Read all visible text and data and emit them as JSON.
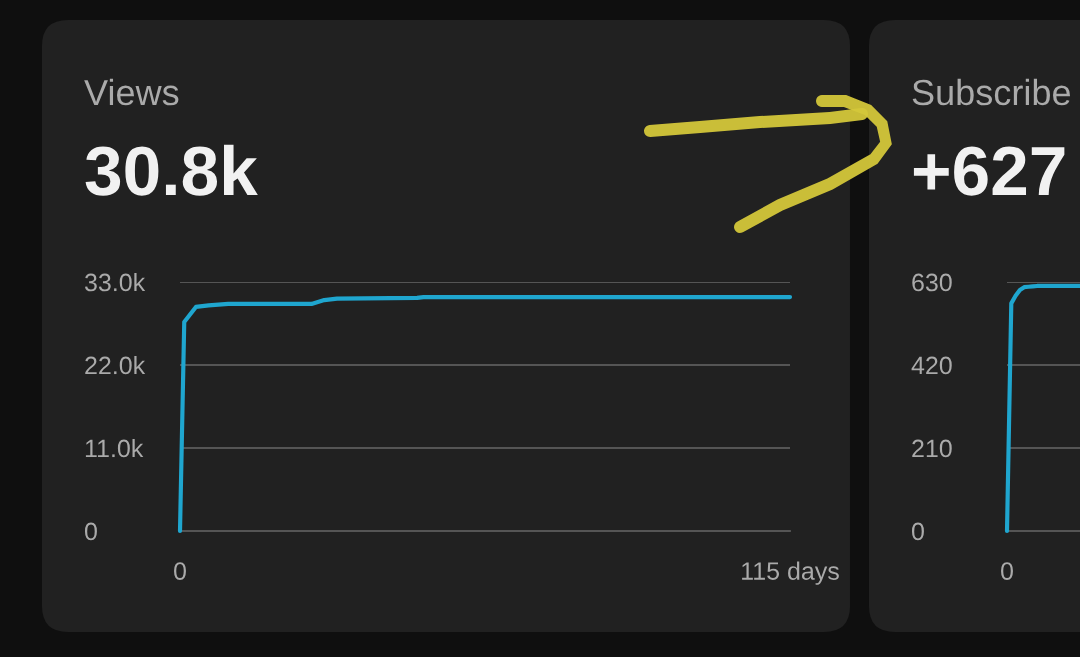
{
  "chart_data": [
    {
      "type": "line",
      "title": "Views",
      "subtitle": "30.8k",
      "x": [
        0,
        0.8,
        3.0,
        5.4,
        9.1,
        24.8,
        27.2,
        29.6,
        44.7,
        45.9,
        115
      ],
      "series": [
        {
          "color": "#1fa6cf",
          "values": [
            0,
            27700,
            29700,
            29900,
            30100,
            30100,
            30600,
            30800,
            30900,
            31000,
            31000
          ]
        }
      ],
      "xlim": [
        0,
        115
      ],
      "xticks": [
        0,
        {
          "value": 115,
          "label": "115 days"
        }
      ],
      "ylim": [
        0,
        33000
      ],
      "yticks": [
        0,
        {
          "value": 11000,
          "label": "11.0k"
        },
        {
          "value": 22000,
          "label": "22.0k"
        },
        {
          "value": 33000,
          "label": "33.0k"
        }
      ],
      "grid": "y",
      "line_style": "solid"
    },
    {
      "type": "line",
      "title": "Subscribe",
      "subtitle": "+627",
      "categories": [
        "0",
        null,
        null,
        null,
        null,
        null,
        null,
        null,
        null,
        null,
        null,
        null,
        null,
        null,
        null,
        null,
        null,
        null
      ],
      "series": [
        {
          "color": "#1fa6cf",
          "values": [
            0,
            576,
            595,
            610,
            617,
            618,
            619,
            620,
            620,
            620,
            620,
            620,
            620,
            620,
            620,
            620,
            620,
            620
          ]
        }
      ],
      "ylim": [
        0,
        630
      ],
      "yticks": [
        0,
        210,
        420,
        630
      ],
      "grid": "y",
      "line_style": "solid"
    }
  ]
}
